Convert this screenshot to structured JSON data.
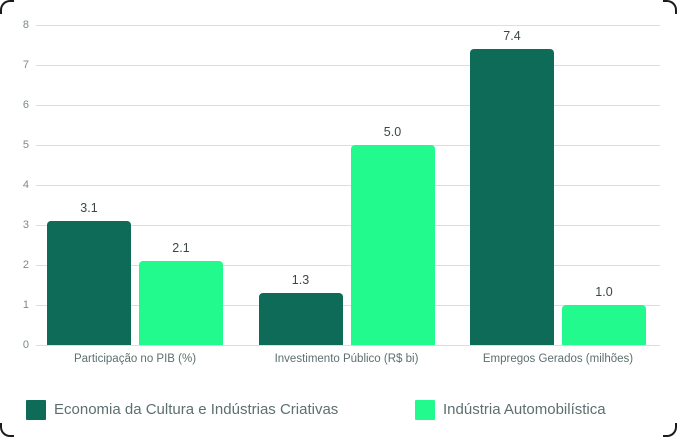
{
  "chart_data": {
    "type": "bar",
    "title": "",
    "categories": [
      "Participação no PIB (%)",
      "Investimento Público (R$ bi)",
      "Empregos Gerados (milhões)"
    ],
    "series": [
      {
        "name": "Economia da Cultura e Indústrias Criativas",
        "color": "#0e6b57",
        "values": [
          3.1,
          1.3,
          7.4
        ],
        "labels": [
          "3.1",
          "1.3",
          "7.4"
        ]
      },
      {
        "name": "Indústria Automobilística",
        "color": "#22fa8e",
        "values": [
          2.1,
          5.0,
          1.0
        ],
        "labels": [
          "2.1",
          "5.0",
          "1.0"
        ]
      }
    ],
    "xlabel": "",
    "ylabel": "",
    "ylim": [
      0,
      8
    ],
    "yticks": [
      0,
      1,
      2,
      3,
      4,
      5,
      6,
      7,
      8
    ],
    "grid": true,
    "legend_position": "bottom-left"
  },
  "colors": {
    "background": "#ffffff",
    "gridline": "#dedede",
    "tick_label": "#7b8a8a",
    "category_label": "#5d6f6f",
    "value_label": "#3a4747",
    "legend_label": "#5d6f6f",
    "card_border": "#1b1b1b"
  }
}
